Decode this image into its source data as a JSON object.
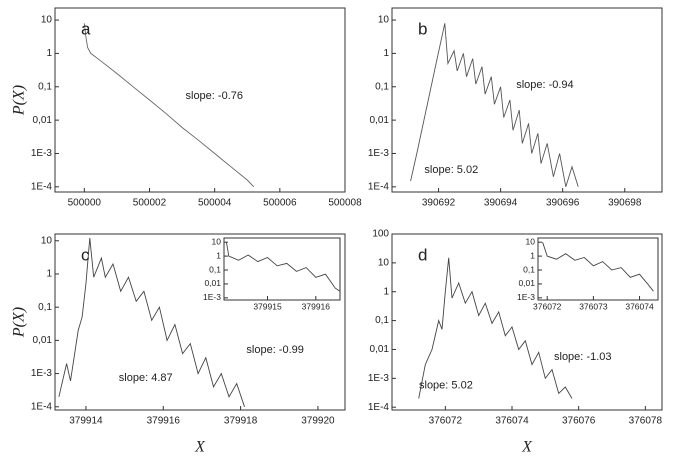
{
  "chart_data": [
    {
      "type": "line",
      "label": "a",
      "y_label": "P(X)",
      "annotations": [
        "slope: -0.76"
      ],
      "log_y": true,
      "color": "#666666",
      "x": [
        500000,
        500000.05,
        500000.1,
        500000.2,
        500000.5,
        500001,
        500001.5,
        500002,
        500002.5,
        500003,
        500003.5,
        500004,
        500004.5,
        500005,
        500005.2
      ],
      "values": [
        8,
        3,
        1.5,
        1,
        0.6,
        0.25,
        0.1,
        0.04,
        0.016,
        0.006,
        0.0025,
        0.001,
        0.0004,
        0.00016,
        0.0001
      ],
      "xlim": [
        499999.1,
        500008
      ],
      "ylim": [
        7e-05,
        23
      ],
      "xticks": [
        500000,
        500002,
        500004,
        500006,
        500008
      ],
      "yticks": [
        {
          "value": 0.0001,
          "label": "1E-4"
        },
        {
          "value": 0.001,
          "label": "1E-3"
        },
        {
          "value": 0.01,
          "label": "0,01"
        },
        {
          "value": 0.1,
          "label": "0,1"
        },
        1,
        10
      ]
    },
    {
      "type": "line",
      "label": "b",
      "annotations": [
        "slope: -0.94",
        "slope: 5.02"
      ],
      "log_y": true,
      "color": "#555555",
      "x": [
        390691.1,
        390691.3,
        390691.6,
        390691.9,
        390692.2,
        390692.3,
        390692.5,
        390692.6,
        390692.8,
        390692.9,
        390693.1,
        390693.2,
        390693.4,
        390693.5,
        390693.7,
        390693.8,
        390694,
        390694.1,
        390694.3,
        390694.4,
        390694.6,
        390694.7,
        390694.9,
        390695,
        390695.2,
        390695.3,
        390695.5,
        390695.7,
        390695.9,
        390696.1,
        390696.3,
        390696.5
      ],
      "values": [
        0.00015,
        0.001,
        0.02,
        0.4,
        8,
        0.5,
        1.2,
        0.3,
        1,
        0.2,
        0.7,
        0.12,
        0.4,
        0.06,
        0.2,
        0.03,
        0.1,
        0.012,
        0.04,
        0.005,
        0.02,
        0.002,
        0.008,
        0.001,
        0.004,
        0.0005,
        0.002,
        0.0002,
        0.001,
        0.0001,
        0.0004,
        0.0001
      ],
      "xlim": [
        390690.5,
        390699.2
      ],
      "ylim": [
        7e-05,
        23
      ],
      "xticks": [
        390692,
        390694,
        390696,
        390698
      ],
      "yticks": [
        {
          "value": 0.0001,
          "label": "1E-4"
        },
        {
          "value": 0.001,
          "label": "1E-3"
        },
        {
          "value": 0.01,
          "label": "0,01"
        },
        {
          "value": 0.1,
          "label": "0,1"
        },
        1,
        10
      ]
    },
    {
      "type": "line",
      "label": "c",
      "y_label": "P(X)",
      "x_label": "X",
      "annotations": [
        "slope: 4.87",
        "slope: -0.99"
      ],
      "log_y": true,
      "color": "#444444",
      "x": [
        379913.3,
        379913.5,
        379913.6,
        379913.8,
        379913.9,
        379914.0,
        379914.1,
        379914.2,
        379914.4,
        379914.5,
        379914.7,
        379914.9,
        379915.1,
        379915.3,
        379915.5,
        379915.7,
        379915.9,
        379916.1,
        379916.3,
        379916.5,
        379916.7,
        379916.9,
        379917.1,
        379917.3,
        379917.5,
        379917.7,
        379917.9,
        379918.1
      ],
      "values": [
        0.0002,
        0.002,
        0.0006,
        0.02,
        0.05,
        0.5,
        12,
        0.8,
        3,
        0.8,
        2,
        0.3,
        0.8,
        0.15,
        0.3,
        0.04,
        0.1,
        0.01,
        0.03,
        0.004,
        0.008,
        0.001,
        0.003,
        0.0004,
        0.001,
        0.0002,
        0.0005,
        0.0001
      ],
      "xlim": [
        379913.2,
        379920.7
      ],
      "ylim": [
        8e-05,
        16
      ],
      "xticks": [
        379914,
        379916,
        379918,
        379920
      ],
      "yticks": [
        {
          "value": 0.0001,
          "label": "1E-4"
        },
        {
          "value": 0.001,
          "label": "1E-3"
        },
        {
          "value": 0.01,
          "label": "0,01"
        },
        {
          "value": 0.1,
          "label": "0,1"
        },
        1,
        10
      ],
      "inset": {
        "type": "line",
        "log_y": true,
        "color": "#444444",
        "x": [
          379914.15,
          379914.2,
          379914.4,
          379914.6,
          379914.8,
          379915.0,
          379915.2,
          379915.4,
          379915.6,
          379915.8,
          379916.0,
          379916.2,
          379916.4,
          379916.5
        ],
        "values": [
          10,
          1,
          0.5,
          1.2,
          0.4,
          0.8,
          0.2,
          0.3,
          0.08,
          0.15,
          0.03,
          0.05,
          0.005,
          0.003
        ],
        "xlim": [
          379914.1,
          379916.5
        ],
        "ylim": [
          0.0007,
          20
        ],
        "xticks": [
          379915,
          379916
        ],
        "yticks": [
          {
            "value": 0.001,
            "label": "1E-3"
          },
          {
            "value": 0.01,
            "label": "0,01"
          },
          {
            "value": 0.1,
            "label": "0,1"
          },
          1,
          10
        ]
      }
    },
    {
      "type": "line",
      "label": "d",
      "x_label": "X",
      "annotations": [
        "slope: 5.02",
        "slope: -1.03"
      ],
      "log_y": true,
      "color": "#444444",
      "x": [
        376071.2,
        376071.4,
        376071.6,
        376071.8,
        376071.9,
        376072.0,
        376072.1,
        376072.2,
        376072.4,
        376072.6,
        376072.8,
        376073.0,
        376073.2,
        376073.4,
        376073.6,
        376073.8,
        376074.0,
        376074.2,
        376074.4,
        376074.6,
        376074.8,
        376075.0,
        376075.2,
        376075.4,
        376075.6,
        376075.8
      ],
      "values": [
        0.0002,
        0.003,
        0.01,
        0.1,
        0.05,
        1,
        15,
        0.6,
        2,
        0.4,
        1,
        0.15,
        0.4,
        0.08,
        0.2,
        0.03,
        0.06,
        0.01,
        0.02,
        0.003,
        0.008,
        0.001,
        0.002,
        0.0003,
        0.0005,
        0.0002
      ],
      "xlim": [
        376070.4,
        376078.5
      ],
      "ylim": [
        8e-05,
        100
      ],
      "xticks": [
        376072,
        376074,
        376076,
        376078
      ],
      "yticks": [
        {
          "value": 0.0001,
          "label": "1E-4"
        },
        {
          "value": 0.001,
          "label": "1E-3"
        },
        {
          "value": 0.01,
          "label": "0,01"
        },
        {
          "value": 0.1,
          "label": "0,1"
        },
        1,
        10,
        100
      ],
      "inset": {
        "type": "line",
        "log_y": true,
        "color": "#444444",
        "x": [
          376071.9,
          376072.0,
          376072.2,
          376072.4,
          376072.6,
          376072.8,
          376073.0,
          376073.2,
          376073.4,
          376073.6,
          376073.8,
          376074.0,
          376074.2,
          376074.3
        ],
        "values": [
          10,
          1,
          0.6,
          1.5,
          0.5,
          0.8,
          0.2,
          0.4,
          0.1,
          0.15,
          0.03,
          0.05,
          0.008,
          0.003
        ],
        "xlim": [
          376071.8,
          376074.4
        ],
        "ylim": [
          0.0007,
          20
        ],
        "xticks": [
          376072,
          376073,
          376074
        ],
        "yticks": [
          {
            "value": 0.001,
            "label": "1E-3"
          },
          {
            "value": 0.01,
            "label": "0,01"
          },
          {
            "value": 0.1,
            "label": "0,1"
          },
          1,
          10
        ]
      }
    }
  ]
}
